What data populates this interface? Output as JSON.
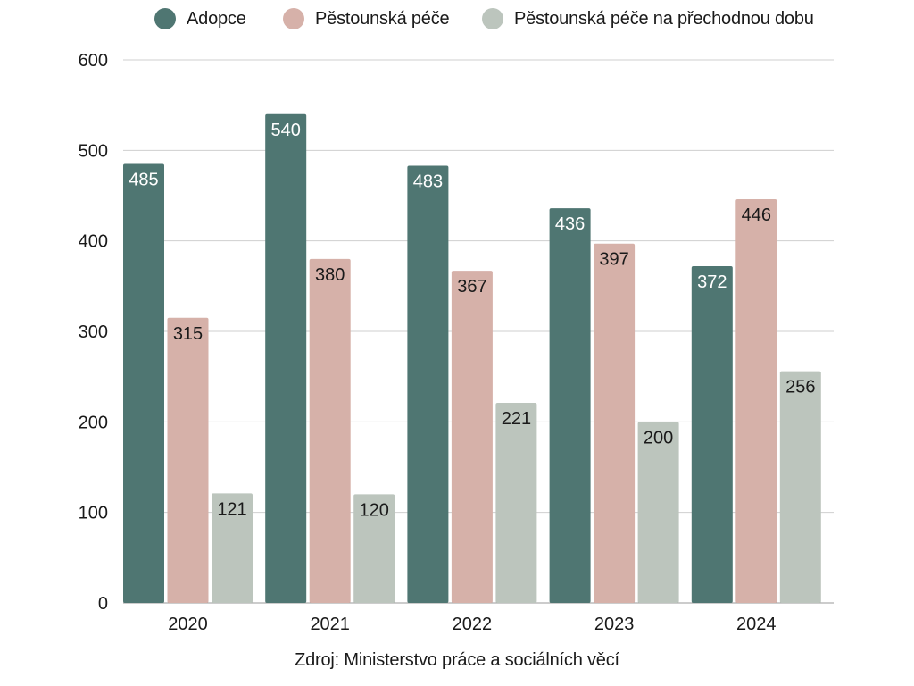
{
  "chart_data": {
    "type": "bar",
    "categories": [
      "2020",
      "2021",
      "2022",
      "2023",
      "2024"
    ],
    "series": [
      {
        "name": "Adopce",
        "values": [
          485,
          540,
          483,
          436,
          372
        ],
        "color": "#4f7672",
        "label_color": "#ffffff"
      },
      {
        "name": "Pěstounská péče",
        "values": [
          315,
          380,
          367,
          397,
          446
        ],
        "color": "#d6b1a9",
        "label_color": "#1a1a1a"
      },
      {
        "name": "Pěstounská péče na přechodnou dobu",
        "values": [
          121,
          120,
          221,
          200,
          256
        ],
        "color": "#bcc5bd",
        "label_color": "#1a1a1a"
      }
    ],
    "ylim": [
      0,
      600
    ],
    "yticks": [
      0,
      100,
      200,
      300,
      400,
      500,
      600
    ],
    "ytick_labels": [
      "0",
      "100",
      "200",
      "300",
      "400",
      "500",
      "600"
    ],
    "grid": true,
    "legend_position": "top-center",
    "source": "Zdroj: Ministerstvo práce a sociálních věcí"
  }
}
